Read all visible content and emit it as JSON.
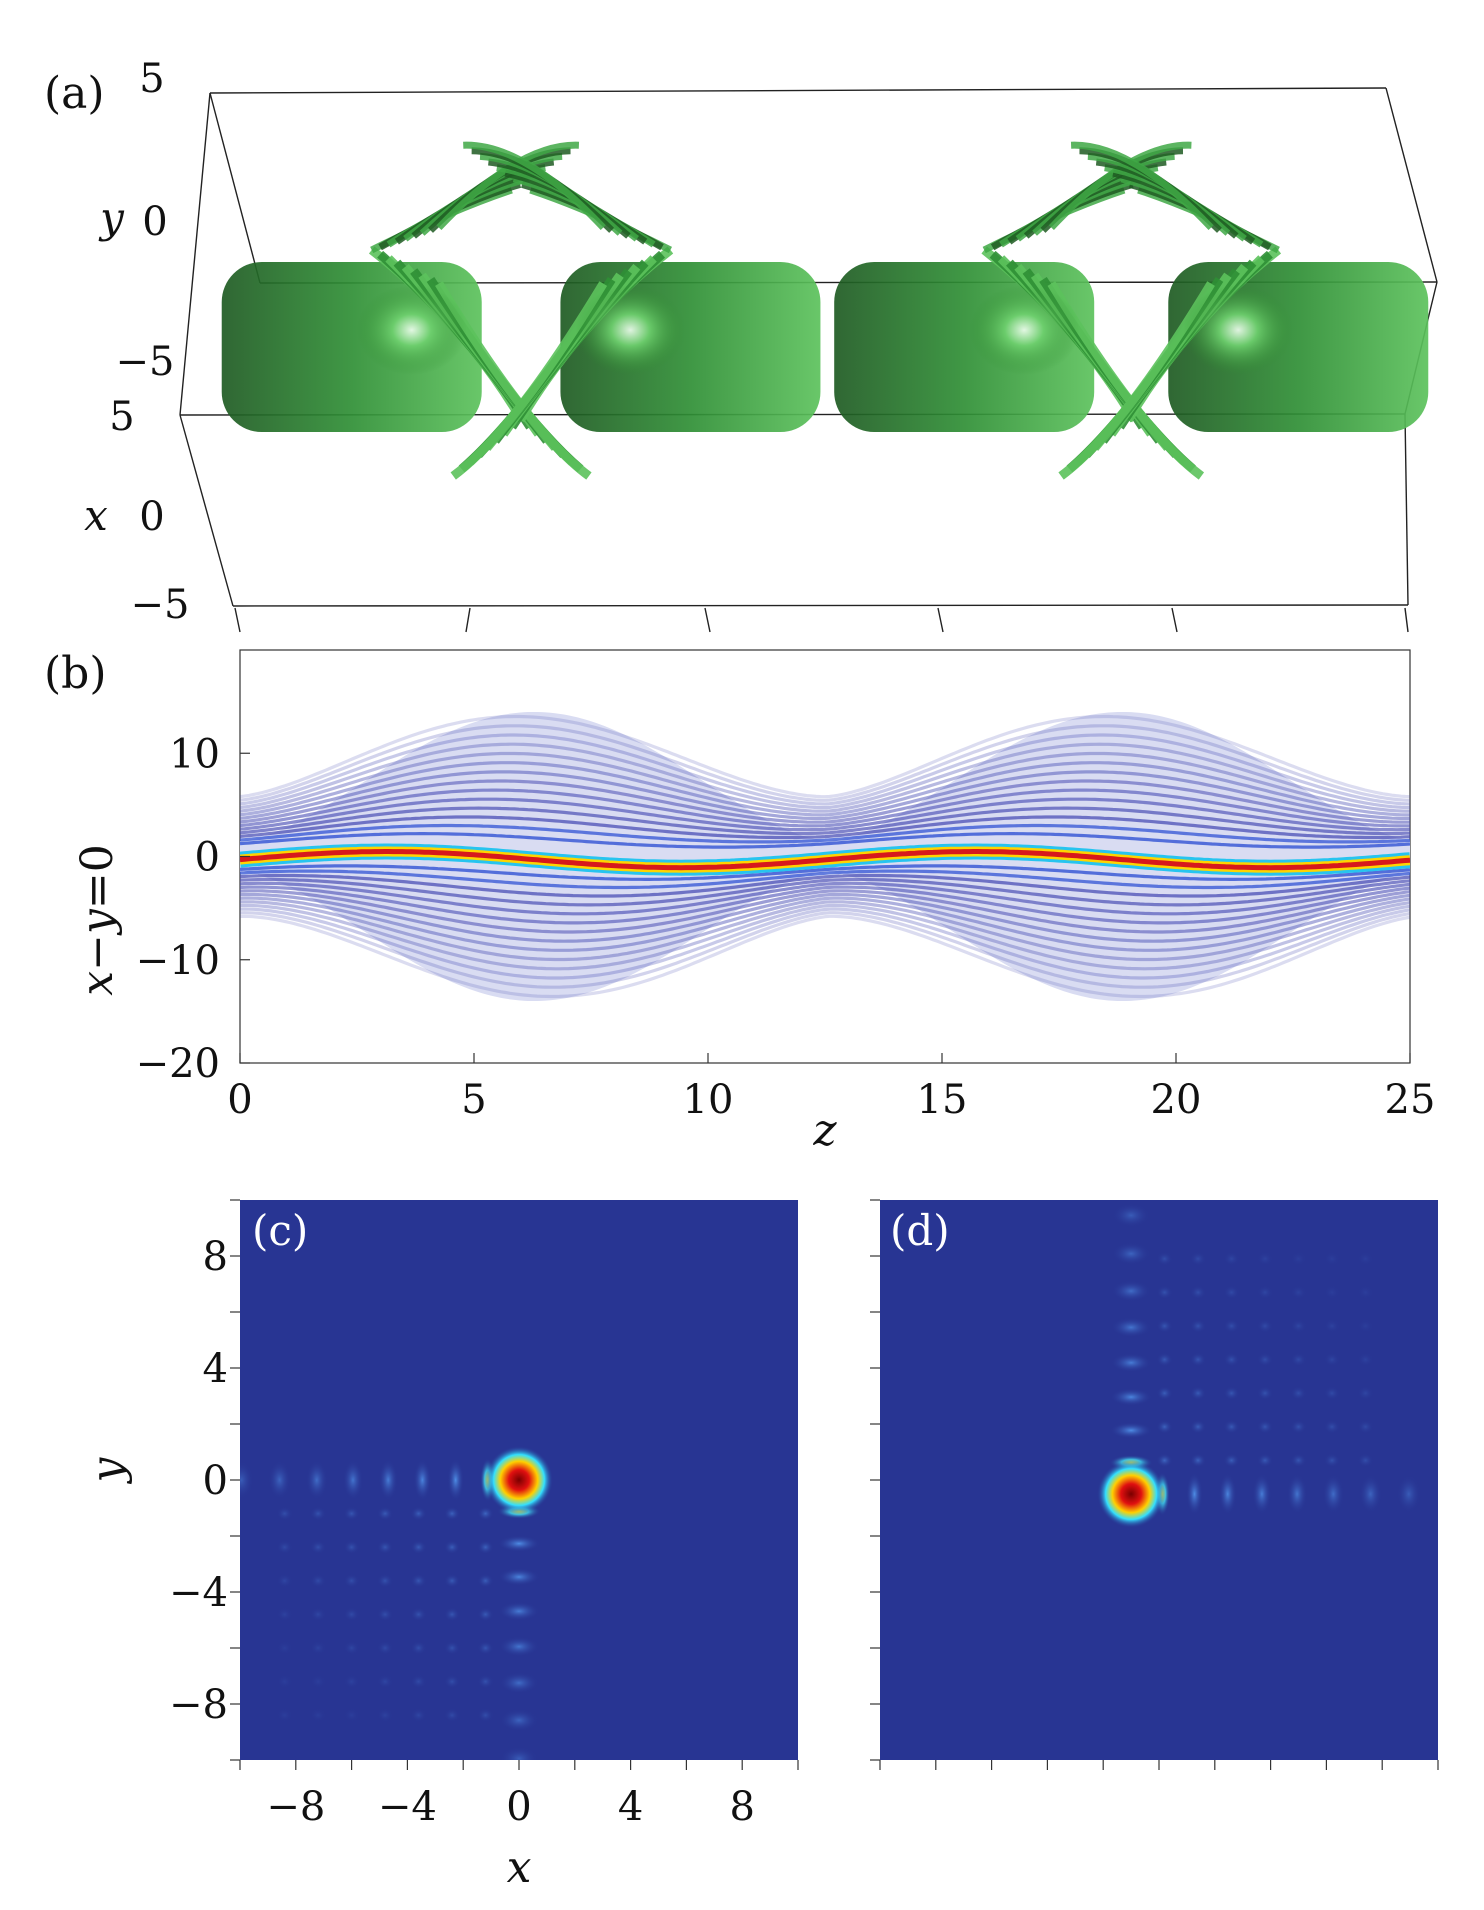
{
  "chart_data": [
    {
      "panel": "(a)",
      "type": "isosurface-3d",
      "surface_color": "#2e8b2e",
      "axes": {
        "y": {
          "label": "y",
          "ticks": [
            "5",
            "0",
            "−5"
          ]
        },
        "x": {
          "label": "x",
          "ticks": [
            "5",
            "0",
            "−5"
          ]
        }
      },
      "blob_centers_z": [
        2.3,
        9.6,
        15.5,
        22.7
      ],
      "period_z": 12.57
    },
    {
      "panel": "(b)",
      "type": "heatmap",
      "colormap": "jet",
      "xlabel": "z",
      "ylabel": "x−y=0",
      "xlim": [
        0,
        25
      ],
      "ylim": [
        -20,
        20
      ],
      "xticks": [
        "0",
        "5",
        "10",
        "15",
        "20",
        "25"
      ],
      "yticks": [
        "10",
        "0",
        "−10",
        "−20"
      ],
      "period_z": 12.57
    },
    {
      "panel": "(c)",
      "type": "heatmap",
      "colormap": "jet",
      "xlabel": "x",
      "ylabel": "y",
      "xlim": [
        -10,
        10
      ],
      "ylim": [
        -10,
        10
      ],
      "xticks": [
        "−8",
        "−4",
        "0",
        "4",
        "8"
      ],
      "yticks": [
        "8",
        "4",
        "0",
        "−4",
        "−8"
      ],
      "peak": {
        "x": 0,
        "y": 0
      }
    },
    {
      "panel": "(d)",
      "type": "heatmap",
      "colormap": "jet",
      "xlim": [
        -10,
        10
      ],
      "ylim": [
        -10,
        10
      ],
      "peak": {
        "x": -1,
        "y": -0.5
      }
    }
  ]
}
